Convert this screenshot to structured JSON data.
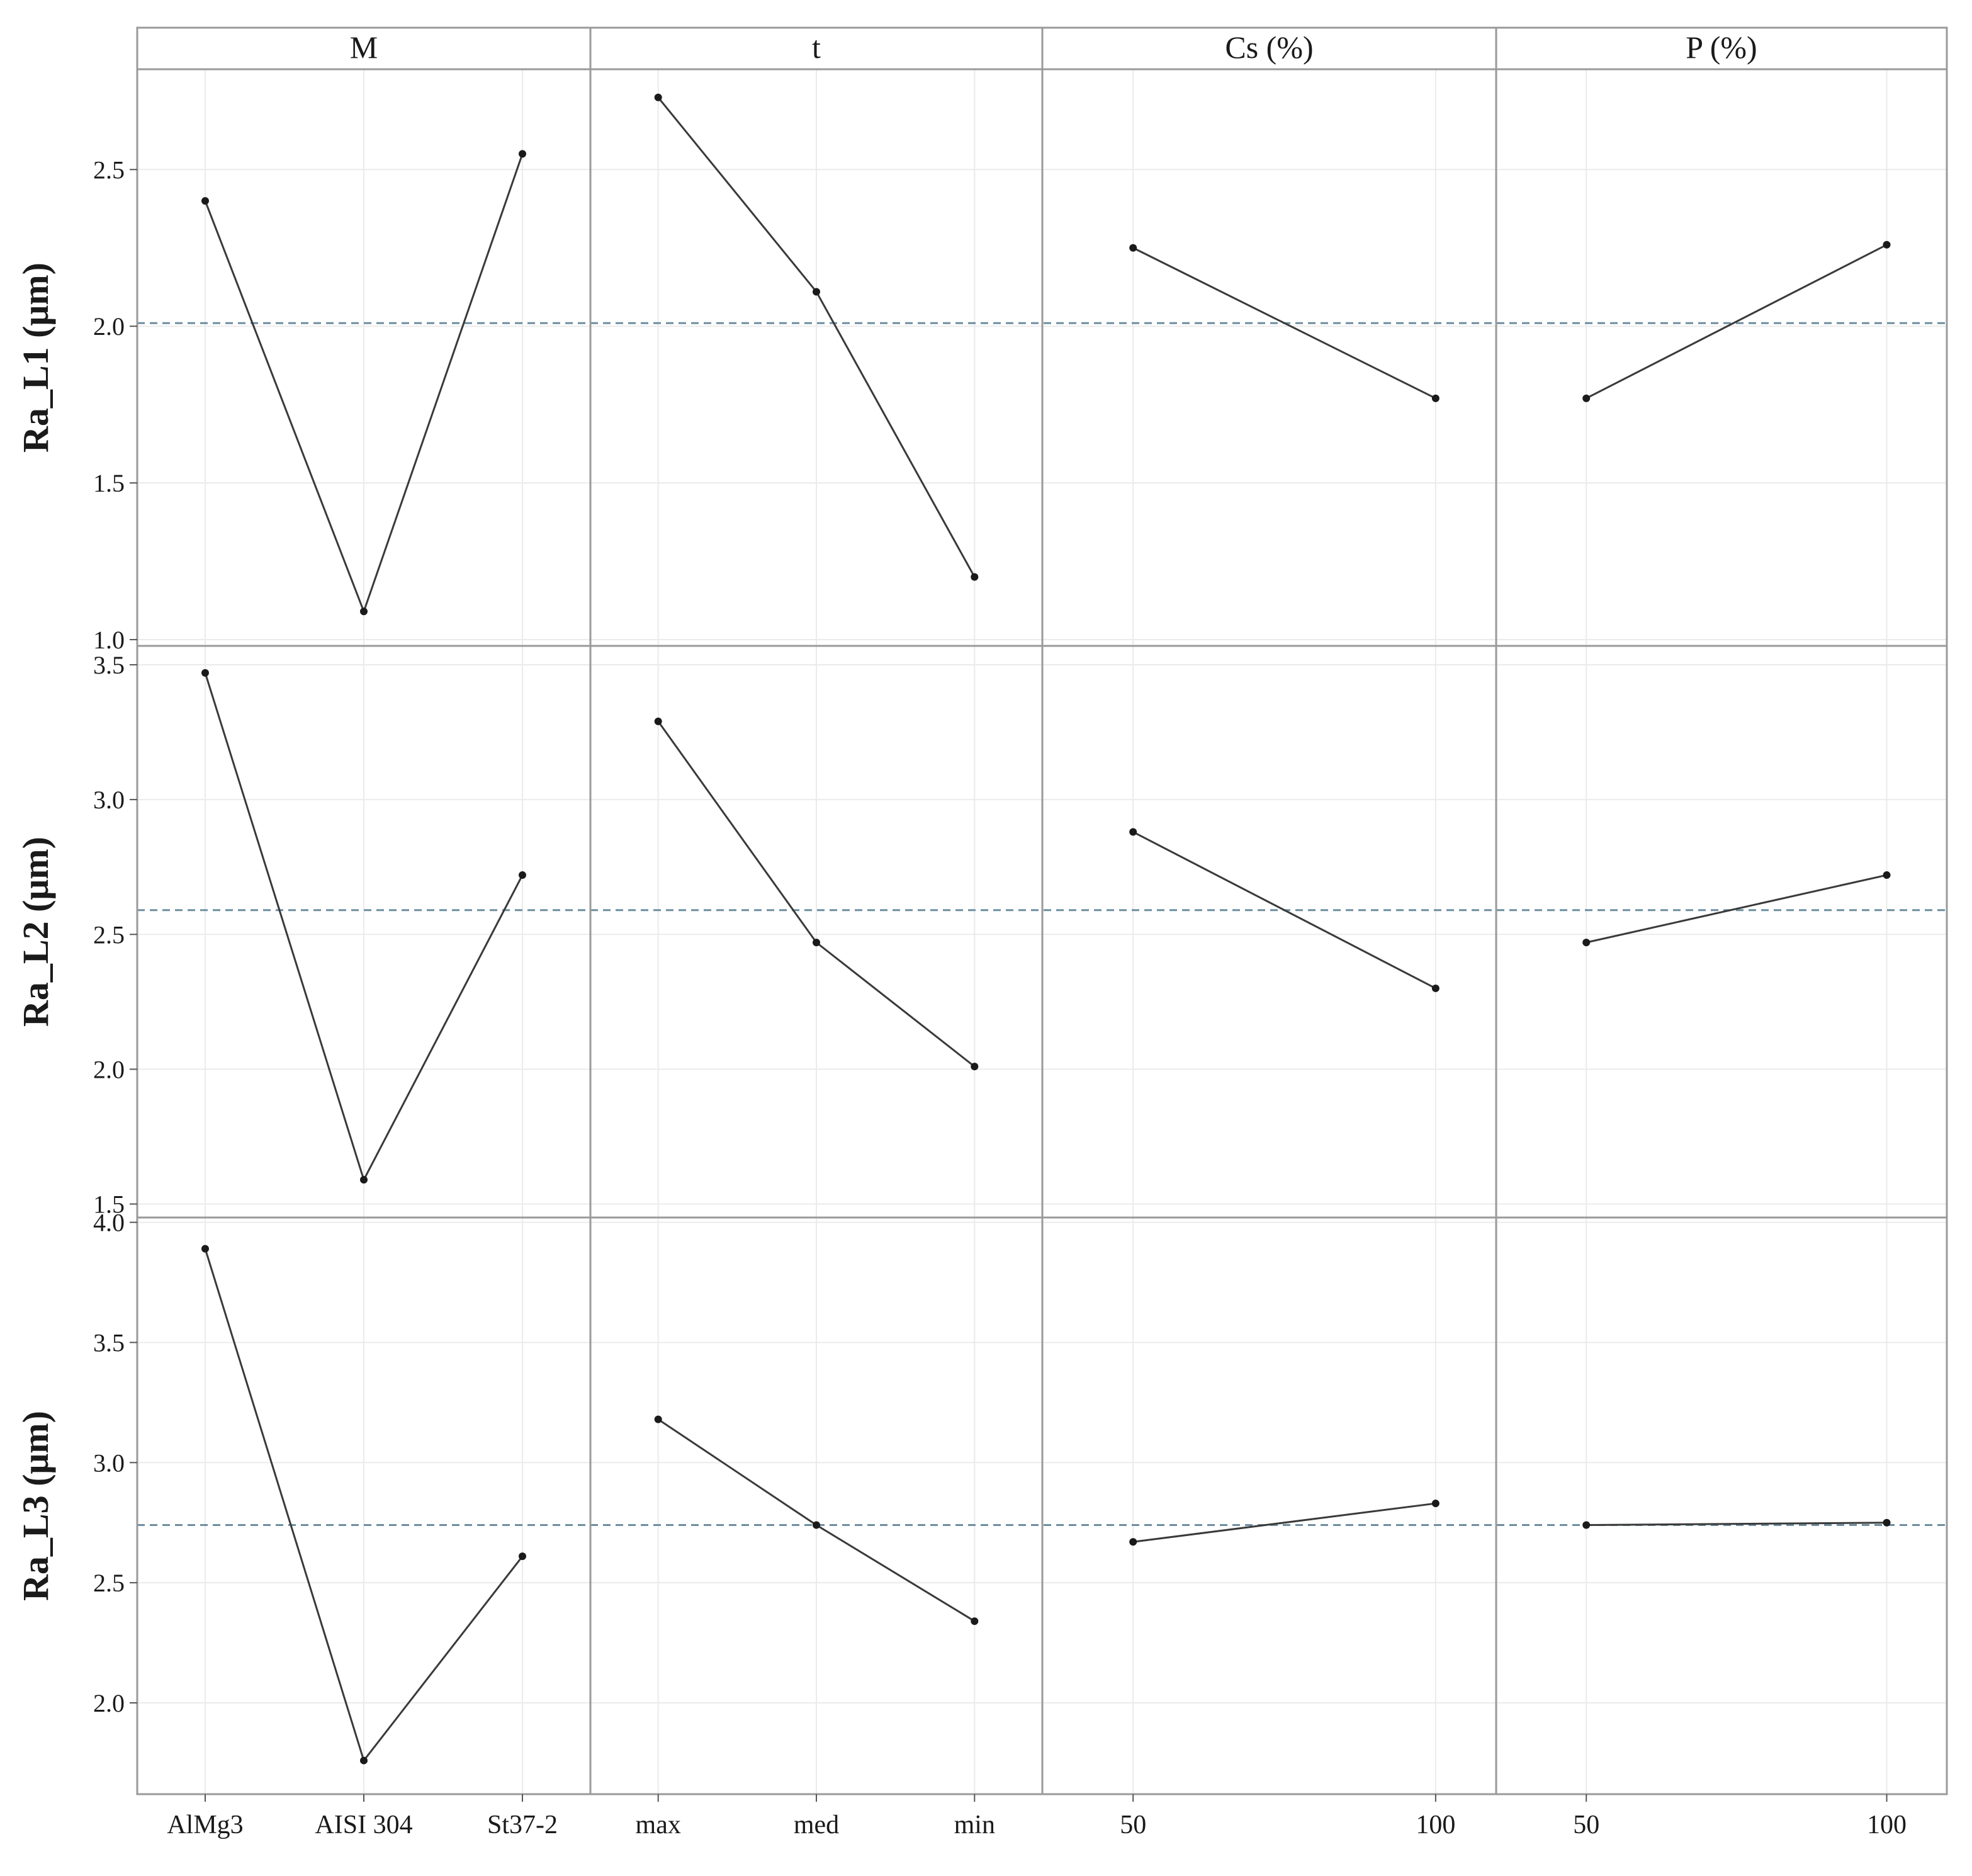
{
  "chart_data": {
    "type": "line",
    "description_free": true,
    "colors": {
      "line": "#3a3a3a",
      "point": "#1a1a1a",
      "mean_line": "#6e8ea0",
      "grid": "#ebebeb",
      "frame": "#9a9a9a"
    },
    "facets": [
      {
        "label": "M",
        "type": "categorical",
        "categories": [
          "AlMg3",
          "AISI 304",
          "St37-2"
        ]
      },
      {
        "label": "t",
        "type": "categorical",
        "categories": [
          "max",
          "med",
          "min"
        ]
      },
      {
        "label": "Cs (%)",
        "type": "numeric",
        "xlim": [
          35,
          110
        ],
        "ticks": [
          50,
          100
        ]
      },
      {
        "label": "P (%)",
        "type": "numeric",
        "xlim": [
          35,
          110
        ],
        "ticks": [
          50,
          100
        ]
      }
    ],
    "rows": [
      {
        "ylabel": "Ra_L1 (μm)",
        "ylim": [
          0.98,
          2.82
        ],
        "ticks": [
          1.0,
          1.5,
          2.0,
          2.5
        ],
        "tick_labels": [
          "1.0",
          "1.5",
          "2.0",
          "2.5"
        ],
        "mean": 2.01,
        "series": [
          [
            2.4,
            1.09,
            2.55
          ],
          [
            2.73,
            2.11,
            1.2
          ],
          [
            [
              50,
              2.25
            ],
            [
              100,
              1.77
            ]
          ],
          [
            [
              50,
              1.77
            ],
            [
              100,
              2.26
            ]
          ]
        ]
      },
      {
        "ylabel": "Ra_L2 (μm)",
        "ylim": [
          1.45,
          3.57
        ],
        "ticks": [
          1.5,
          2.0,
          2.5,
          3.0,
          3.5
        ],
        "tick_labels": [
          "1.5",
          "2.0",
          "2.5",
          "3.0",
          "3.5"
        ],
        "mean": 2.59,
        "series": [
          [
            3.47,
            1.59,
            2.72
          ],
          [
            3.29,
            2.47,
            2.01
          ],
          [
            [
              50,
              2.88
            ],
            [
              100,
              2.3
            ]
          ],
          [
            [
              50,
              2.47
            ],
            [
              100,
              2.72
            ]
          ]
        ]
      },
      {
        "ylabel": "Ra_L3 (μm)",
        "ylim": [
          1.62,
          4.02
        ],
        "ticks": [
          2.0,
          2.5,
          3.0,
          3.5,
          4.0
        ],
        "tick_labels": [
          "2.0",
          "2.5",
          "3.0",
          "3.5",
          "4.0"
        ],
        "mean": 2.74,
        "series": [
          [
            3.89,
            1.76,
            2.61
          ],
          [
            3.18,
            2.74,
            2.34
          ],
          [
            [
              50,
              2.67
            ],
            [
              100,
              2.83
            ]
          ],
          [
            [
              50,
              2.74
            ],
            [
              100,
              2.75
            ]
          ]
        ]
      }
    ]
  }
}
